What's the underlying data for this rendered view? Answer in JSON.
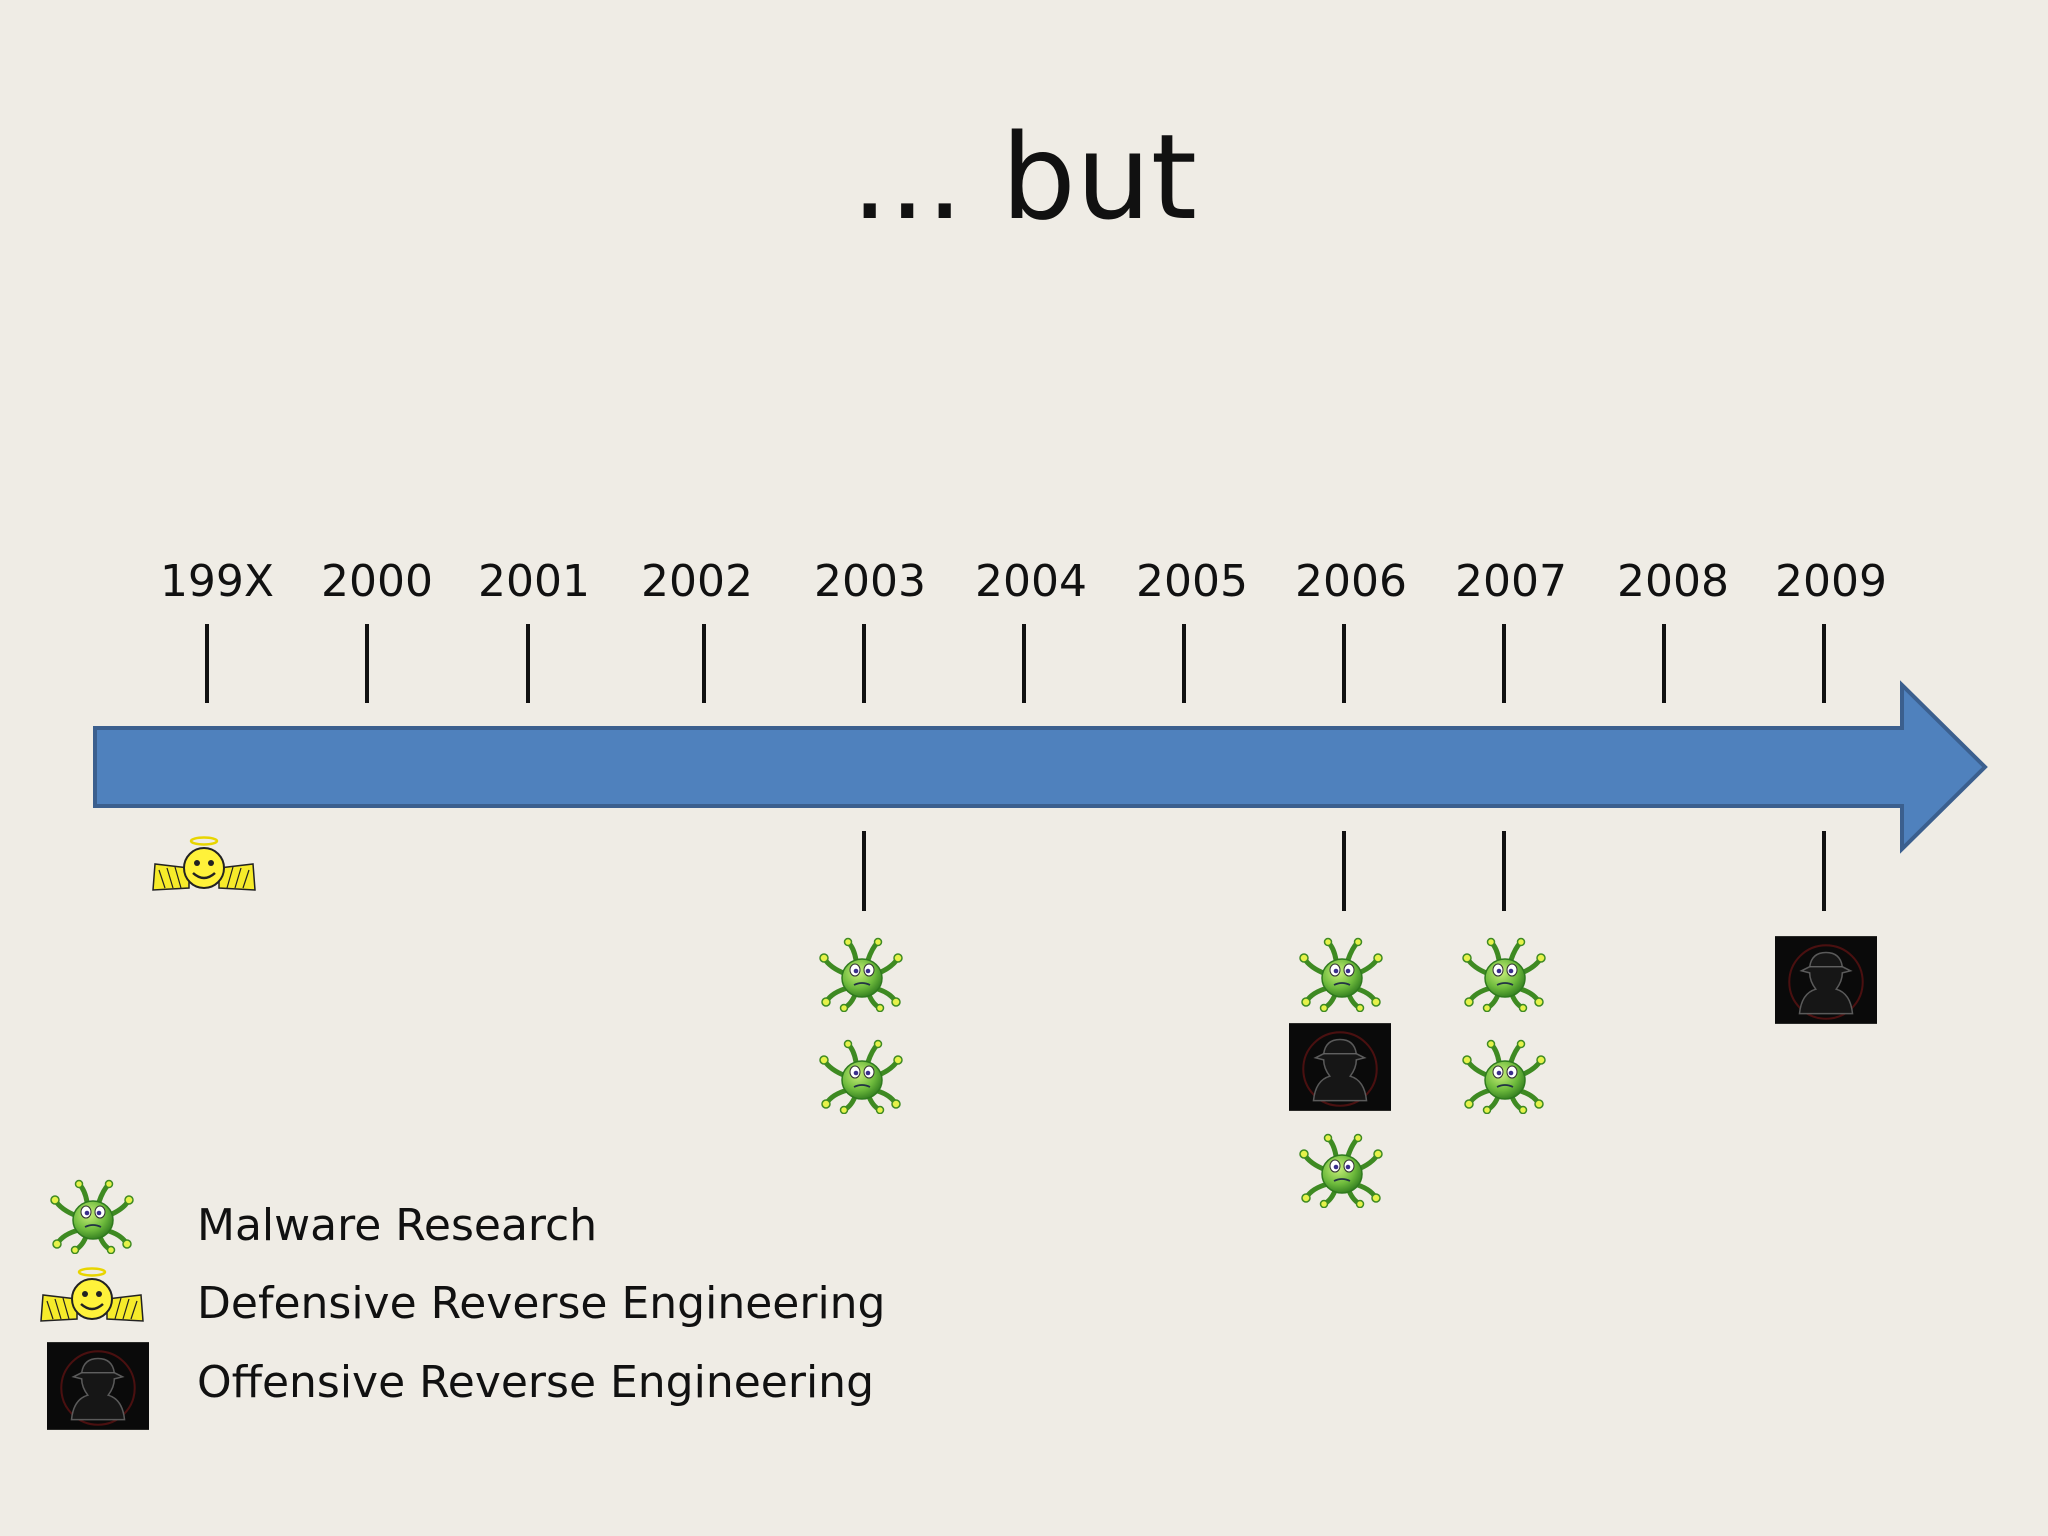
{
  "slide": {
    "title": "... but"
  },
  "timeline": {
    "years": [
      "199X",
      "2000",
      "2001",
      "2002",
      "2003",
      "2004",
      "2005",
      "2006",
      "2007",
      "2008",
      "2009"
    ],
    "arrow_color": "#4F81BD",
    "events": [
      {
        "year": "199X",
        "icons": [
          "angel-icon"
        ]
      },
      {
        "year": "2003",
        "icons": [
          "bug-icon",
          "bug-icon"
        ]
      },
      {
        "year": "2006",
        "icons": [
          "bug-icon",
          "spy-icon",
          "bug-icon"
        ]
      },
      {
        "year": "2007",
        "icons": [
          "bug-icon",
          "bug-icon"
        ]
      },
      {
        "year": "2009",
        "icons": [
          "spy-icon"
        ]
      }
    ]
  },
  "legend": {
    "items": [
      {
        "icon": "bug-icon",
        "label": "Malware Research"
      },
      {
        "icon": "angel-icon",
        "label": "Defensive Reverse Engineering"
      },
      {
        "icon": "spy-icon",
        "label": "Offensive Reverse Engineering"
      }
    ]
  }
}
